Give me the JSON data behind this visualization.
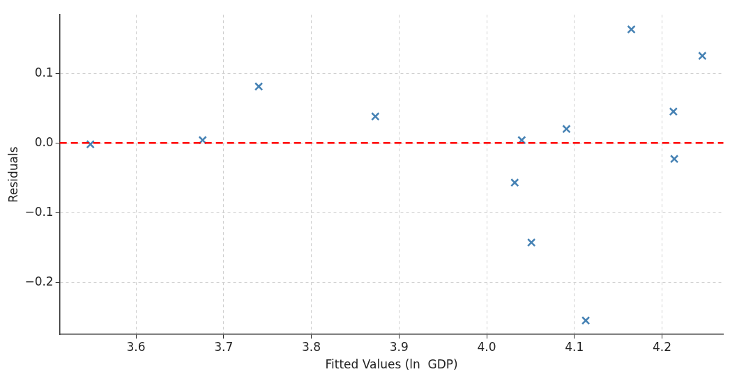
{
  "chart_data": {
    "type": "scatter",
    "xlabel": "Fitted Values (ln  GDP)",
    "ylabel": "Residuals",
    "x": [
      3.548,
      3.676,
      3.74,
      3.873,
      4.032,
      4.04,
      4.051,
      4.091,
      4.113,
      4.165,
      4.213,
      4.214,
      4.246
    ],
    "series": [
      {
        "color": "#4682b4",
        "values": [
          -0.002,
          0.004,
          0.081,
          0.038,
          -0.057,
          0.004,
          -0.143,
          0.02,
          -0.255,
          0.163,
          0.045,
          -0.023,
          0.125
        ]
      }
    ],
    "marker": "cross",
    "grid": true,
    "xlim": [
      3.513,
      4.27
    ],
    "ylim": [
      -0.275,
      0.184
    ],
    "xticks": [
      {
        "value": 3.6,
        "label": "3.6"
      },
      {
        "value": 3.7,
        "label": "3.7"
      },
      {
        "value": 3.8,
        "label": "3.8"
      },
      {
        "value": 3.9,
        "label": "3.9"
      },
      {
        "value": 4.0,
        "label": "4.0"
      },
      {
        "value": 4.1,
        "label": "4.1"
      },
      {
        "value": 4.2,
        "label": "4.2"
      }
    ],
    "yticks": [
      {
        "value": -0.2,
        "label": "−0.2"
      },
      {
        "value": -0.1,
        "label": "−0.1"
      },
      {
        "value": 0,
        "label": "0.0"
      },
      {
        "value": 0.1,
        "label": "0.1"
      }
    ],
    "ref_lines": [
      {
        "axis": "y",
        "value": 0,
        "color": "#ff0000",
        "line_style": "dashed"
      }
    ]
  }
}
